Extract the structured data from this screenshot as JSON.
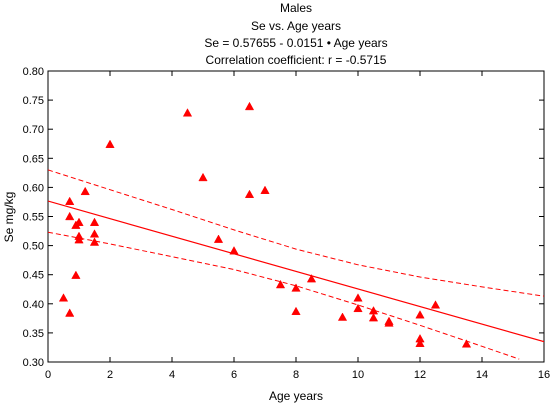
{
  "chart_data": {
    "type": "scatter",
    "title": "Males",
    "subtitle": "Se vs. Age years",
    "equation": "Se = 0.57655 - 0.0151 • Age years",
    "correlation": "Correlation coefficient: r = -0.5715",
    "xlabel": "Age years",
    "ylabel": "Se mg/kg",
    "xlim": [
      0,
      16
    ],
    "ylim": [
      0.3,
      0.8
    ],
    "xticks": [
      "0",
      "2",
      "4",
      "6",
      "8",
      "10",
      "12",
      "14",
      "16"
    ],
    "yticks": [
      "0.30",
      "0.35",
      "0.40",
      "0.45",
      "0.50",
      "0.55",
      "0.60",
      "0.65",
      "0.70",
      "0.75",
      "0.80"
    ],
    "grid": false,
    "marker": "triangle",
    "color": "#ff0000",
    "regression": {
      "intercept": 0.57655,
      "slope": -0.0151
    },
    "confidence_band": {
      "upper": [
        [
          0,
          0.63
        ],
        [
          2,
          0.596
        ],
        [
          4,
          0.562
        ],
        [
          6,
          0.527
        ],
        [
          8,
          0.494
        ],
        [
          10,
          0.467
        ],
        [
          12,
          0.446
        ],
        [
          14,
          0.429
        ],
        [
          16,
          0.413
        ]
      ],
      "lower": [
        [
          0,
          0.523
        ],
        [
          2,
          0.503
        ],
        [
          4,
          0.481
        ],
        [
          6,
          0.459
        ],
        [
          8,
          0.431
        ],
        [
          10,
          0.398
        ],
        [
          12,
          0.363
        ],
        [
          14,
          0.327
        ],
        [
          15.2,
          0.305
        ]
      ]
    },
    "points": [
      {
        "x": 0.5,
        "y": 0.41
      },
      {
        "x": 0.7,
        "y": 0.384
      },
      {
        "x": 0.7,
        "y": 0.55
      },
      {
        "x": 0.7,
        "y": 0.576
      },
      {
        "x": 0.9,
        "y": 0.449
      },
      {
        "x": 0.9,
        "y": 0.535
      },
      {
        "x": 1.0,
        "y": 0.516
      },
      {
        "x": 1.0,
        "y": 0.51
      },
      {
        "x": 1.0,
        "y": 0.54
      },
      {
        "x": 1.2,
        "y": 0.593
      },
      {
        "x": 1.5,
        "y": 0.54
      },
      {
        "x": 1.5,
        "y": 0.52
      },
      {
        "x": 1.5,
        "y": 0.506
      },
      {
        "x": 2.0,
        "y": 0.674
      },
      {
        "x": 4.5,
        "y": 0.728
      },
      {
        "x": 5.0,
        "y": 0.617
      },
      {
        "x": 5.5,
        "y": 0.511
      },
      {
        "x": 6.0,
        "y": 0.491
      },
      {
        "x": 6.5,
        "y": 0.739
      },
      {
        "x": 6.5,
        "y": 0.588
      },
      {
        "x": 7.0,
        "y": 0.595
      },
      {
        "x": 7.5,
        "y": 0.433
      },
      {
        "x": 8.0,
        "y": 0.427
      },
      {
        "x": 8.0,
        "y": 0.387
      },
      {
        "x": 8.5,
        "y": 0.443
      },
      {
        "x": 9.5,
        "y": 0.377
      },
      {
        "x": 10.0,
        "y": 0.41
      },
      {
        "x": 10.0,
        "y": 0.392
      },
      {
        "x": 10.5,
        "y": 0.388
      },
      {
        "x": 10.5,
        "y": 0.376
      },
      {
        "x": 11.0,
        "y": 0.37
      },
      {
        "x": 11.0,
        "y": 0.367
      },
      {
        "x": 12.0,
        "y": 0.381
      },
      {
        "x": 12.0,
        "y": 0.34
      },
      {
        "x": 12.0,
        "y": 0.332
      },
      {
        "x": 12.5,
        "y": 0.398
      },
      {
        "x": 13.5,
        "y": 0.331
      }
    ]
  }
}
